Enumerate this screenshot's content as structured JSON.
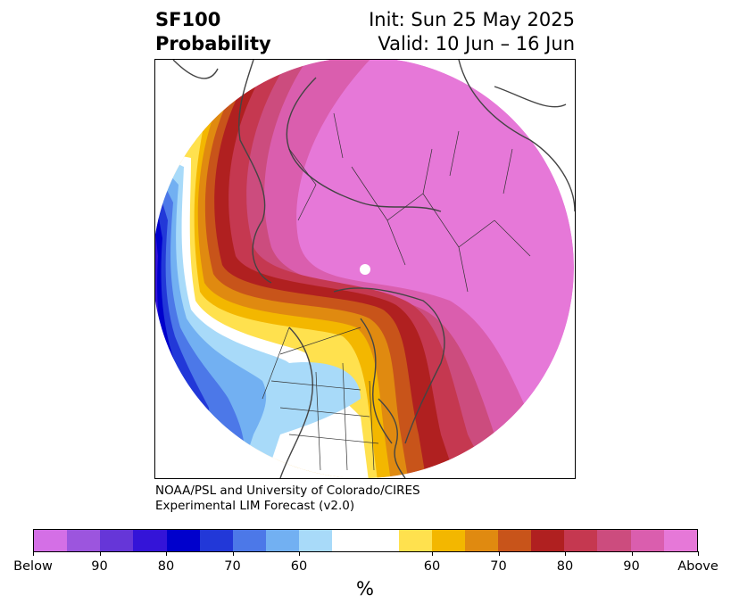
{
  "header": {
    "variable": "SF100",
    "subtitle": "Probability",
    "init": "Init: Sun 25 May 2025",
    "valid": "Valid: 10 Jun – 16 Jun"
  },
  "credit": {
    "line1": "NOAA/PSL and University of Colorado/CIRES",
    "line2": "Experimental LIM Forecast (v2.0)"
  },
  "colorbar": {
    "colors": [
      "#d46fe6",
      "#9c55de",
      "#6636d8",
      "#3414d8",
      "#0000cc",
      "#2238d8",
      "#4c78e8",
      "#72b0f2",
      "#a8daf9",
      "#ffffff",
      "#ffe14e",
      "#f3b700",
      "#e08a10",
      "#c8541a",
      "#b02020",
      "#c53850",
      "#cc4c7e",
      "#da5eae",
      "#e678d8"
    ],
    "ticks": [
      "Below",
      "90",
      "80",
      "70",
      "60",
      "60",
      "70",
      "80",
      "90",
      "Above"
    ],
    "unit": "%"
  },
  "map": {
    "projection": "north polar stereographic",
    "features": [
      "coastlines",
      "country borders",
      "US state borders",
      "Canadian province borders"
    ]
  }
}
